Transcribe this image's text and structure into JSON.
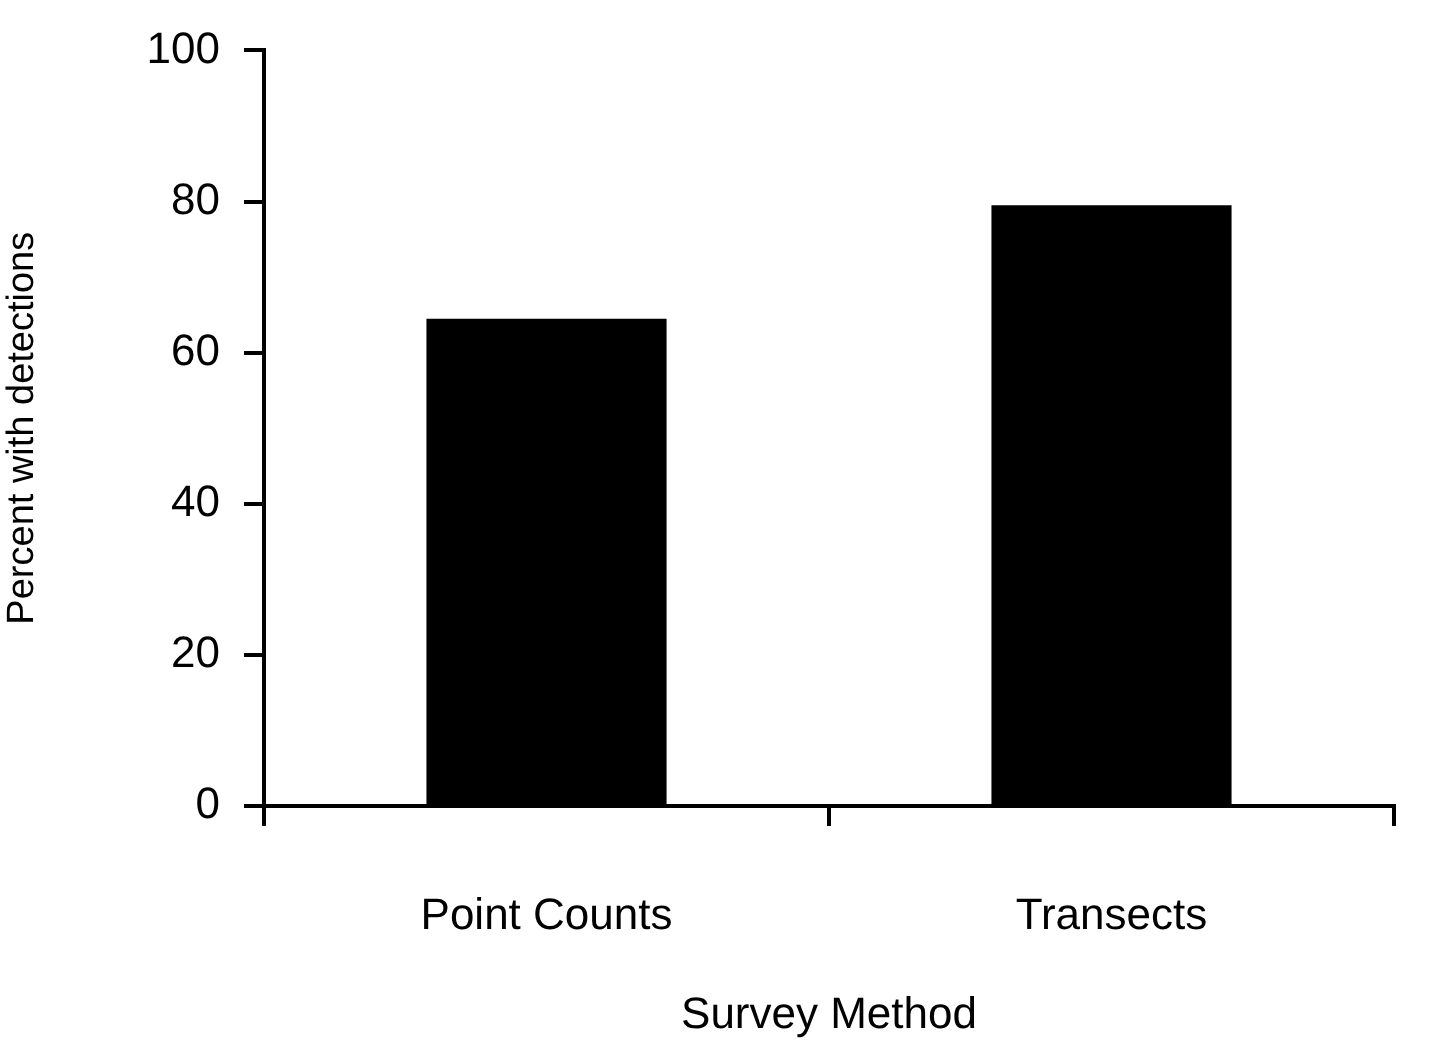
{
  "chart_data": {
    "type": "bar",
    "xlabel": "Survey Method",
    "ylabel": "Percent with detections",
    "categories": [
      "Point Counts",
      "Transects"
    ],
    "values": [
      64.5,
      79.5
    ],
    "color": "#000000",
    "ylim": [
      0,
      100
    ],
    "yticks": [
      0,
      20,
      40,
      60,
      80,
      100
    ],
    "grid": false,
    "legend": false
  }
}
